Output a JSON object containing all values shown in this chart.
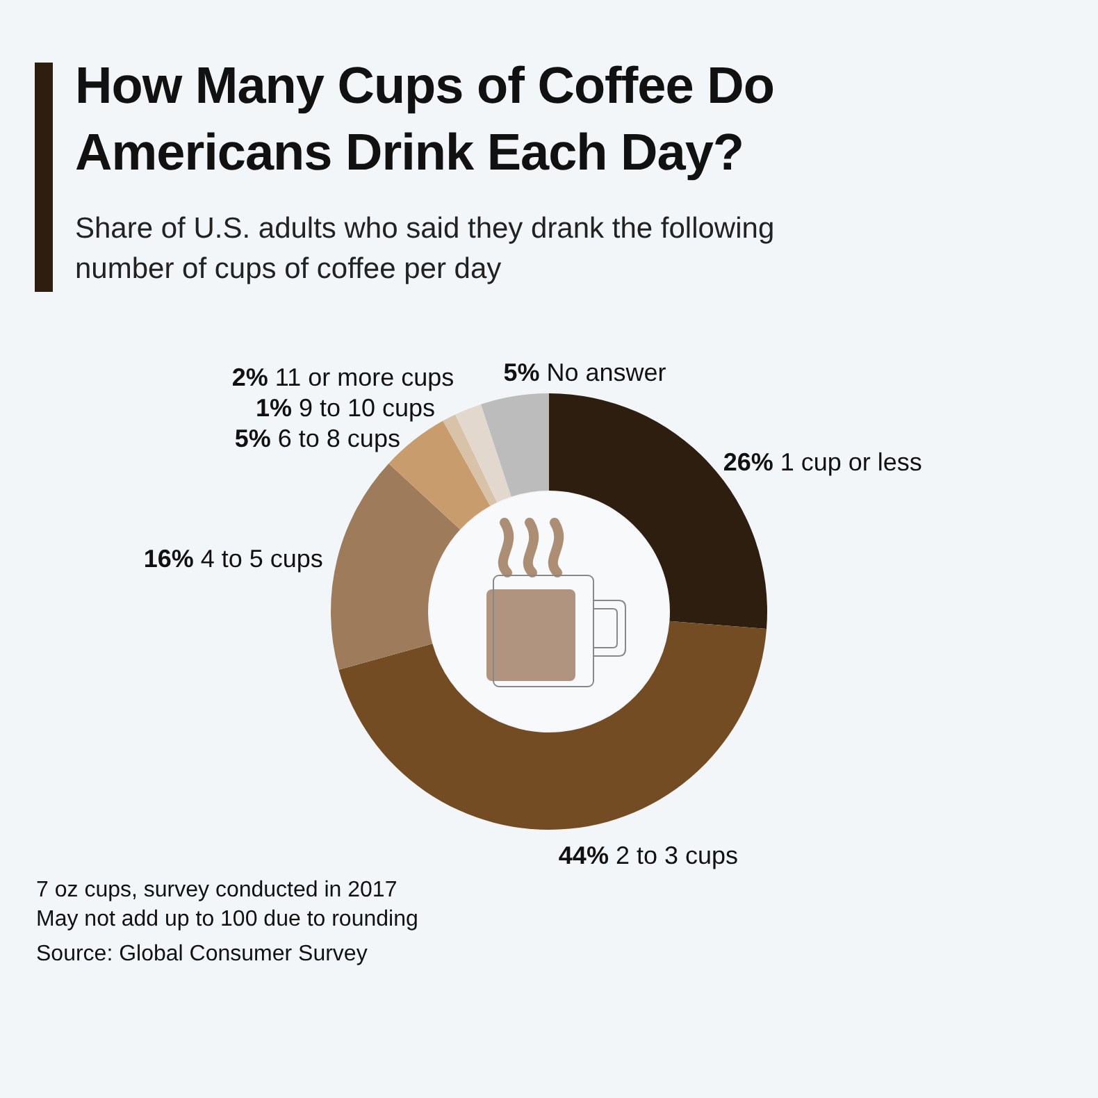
{
  "chart_data": {
    "type": "donut",
    "title": "How Many Cups of Coffee Do Americans Drink Each Day?",
    "subtitle": "Share of U.S. adults who said they drank the following number of cups of coffee per day",
    "categories": [
      "1 cup or less",
      "2 to 3 cups",
      "4 to 5 cups",
      "6 to 8 cups",
      "9 to 10 cups",
      "11 or more cups",
      "No answer"
    ],
    "values": [
      26,
      44,
      16,
      5,
      1,
      2,
      5
    ],
    "colors": [
      "#2e1e0f",
      "#744c24",
      "#9e7b5b",
      "#c99c6e",
      "#d8c2a8",
      "#e2d8ce",
      "#bcbcbc"
    ],
    "value_labels": [
      "26%",
      "44%",
      "16%",
      "5%",
      "1%",
      "2%",
      "5%"
    ],
    "annotations": [
      "7 oz cups, survey conducted in 2017",
      "May not add up to 100 due to rounding",
      "Source: Global Consumer Survey"
    ]
  }
}
